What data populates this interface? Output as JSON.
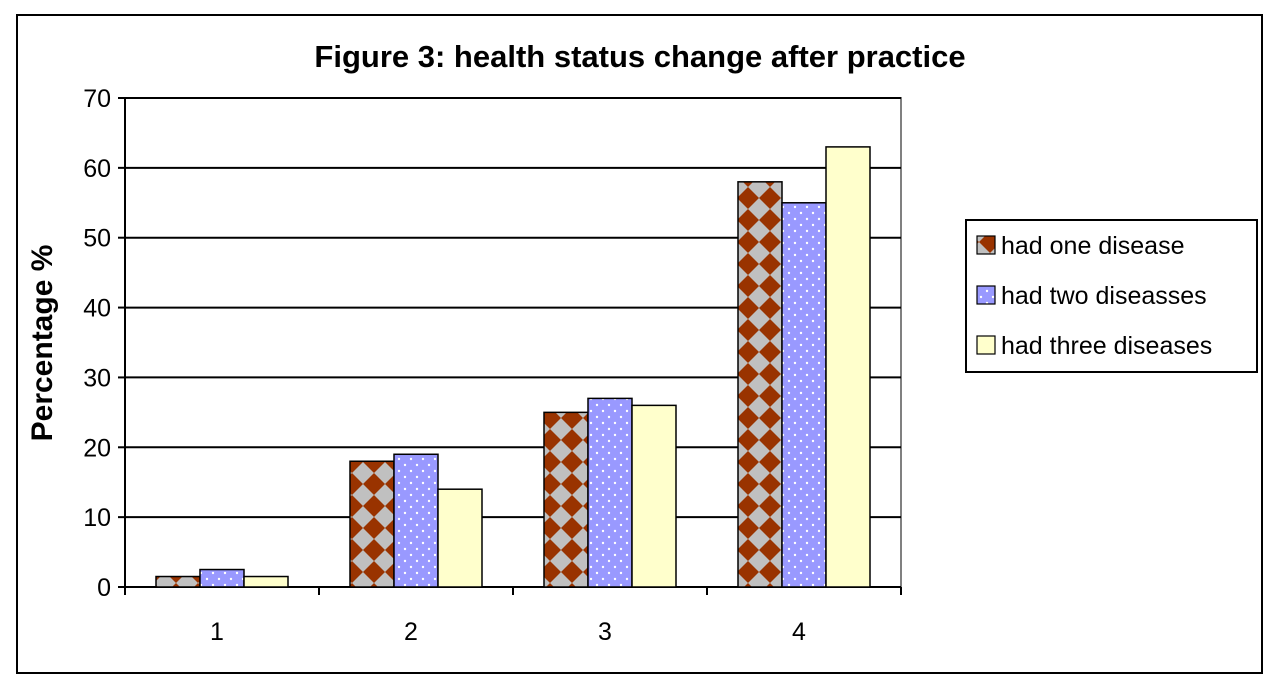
{
  "chart_data": {
    "type": "bar",
    "title": "Figure 3: health status change after practice",
    "xlabel": "",
    "ylabel": "Percentage %",
    "categories": [
      "1",
      "2",
      "3",
      "4"
    ],
    "ylim": [
      0,
      70
    ],
    "yticks": [
      0,
      10,
      20,
      30,
      40,
      50,
      60,
      70
    ],
    "grid": true,
    "legend_position": "right",
    "series": [
      {
        "name": "had one disease",
        "values": [
          1.5,
          18,
          25,
          58
        ],
        "color": "#993300",
        "pattern": "checker"
      },
      {
        "name": "had two diseasses",
        "values": [
          2.5,
          19,
          27,
          55
        ],
        "color": "#9999ff",
        "pattern": "dots"
      },
      {
        "name": "had three diseases",
        "values": [
          1.5,
          14,
          26,
          63
        ],
        "color": "#ffffcc",
        "pattern": "solid"
      }
    ]
  }
}
